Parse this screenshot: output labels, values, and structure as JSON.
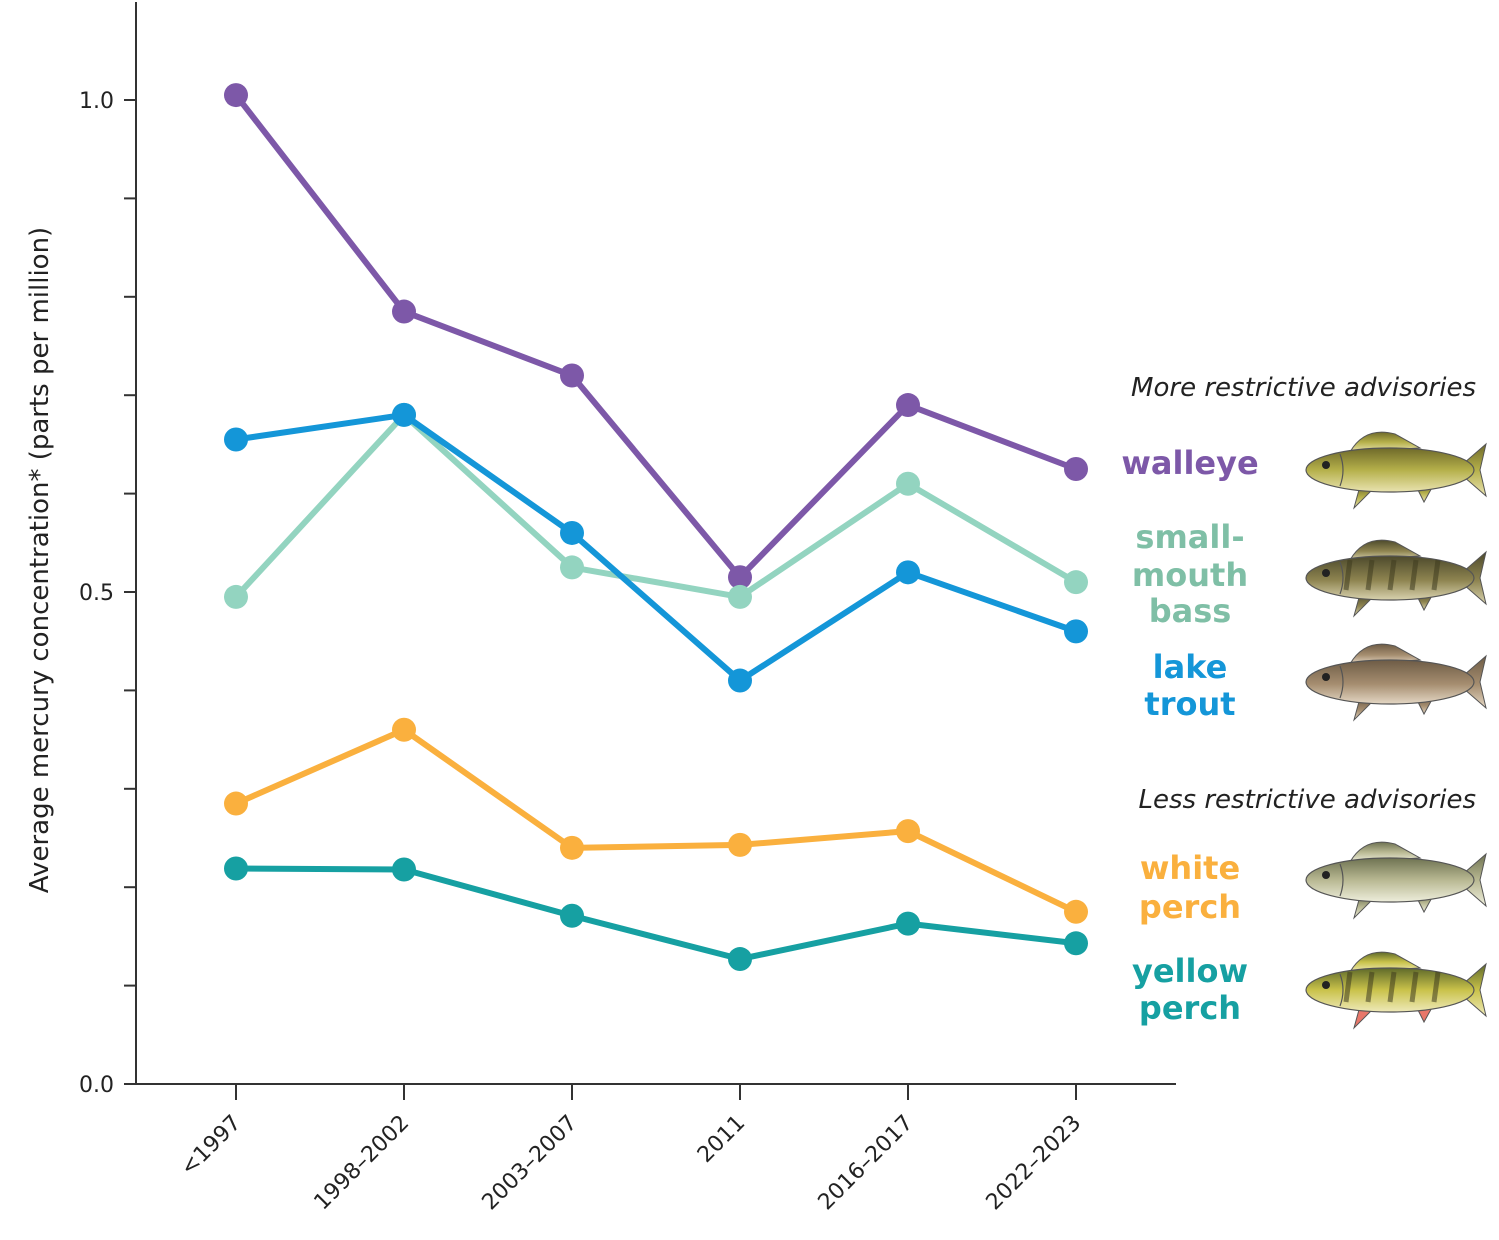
{
  "chart_data": {
    "type": "line",
    "ylabel": "Average mercury concentration* (parts per million)",
    "xlabel": "",
    "ylim": [
      0.0,
      1.0
    ],
    "yticks": [
      {
        "value": 0.0,
        "label": "0.0"
      },
      {
        "value": 0.5,
        "label": "0.5"
      },
      {
        "value": 1.0,
        "label": "1.0"
      }
    ],
    "categories": [
      "<1997",
      "1998–2002",
      "2003–2007",
      "2011",
      "2016–2017",
      "2022–2023"
    ],
    "series": [
      {
        "name": "walleye",
        "color": "#7d58a8",
        "values": [
          1.005,
          0.785,
          0.72,
          0.515,
          0.69,
          0.625
        ]
      },
      {
        "name": "small-mouth bass",
        "color": "#93d4c0",
        "values": [
          0.495,
          0.68,
          0.525,
          0.495,
          0.61,
          0.51
        ]
      },
      {
        "name": "lake trout",
        "color": "#1496d8",
        "values": [
          0.655,
          0.68,
          0.56,
          0.41,
          0.52,
          0.46
        ]
      },
      {
        "name": "white perch",
        "color": "#fab03e",
        "values": [
          0.285,
          0.36,
          0.24,
          0.243,
          0.257,
          0.175
        ]
      },
      {
        "name": "yellow perch",
        "color": "#16a0a2",
        "values": [
          0.219,
          0.218,
          0.171,
          0.127,
          0.163,
          0.143
        ]
      }
    ],
    "legend": {
      "placement": "right",
      "groups": [
        {
          "title": "More restrictive advisories",
          "items": [
            {
              "lines": [
                "walleye"
              ],
              "color": "#7d58a8",
              "icon": "walleye-fish-icon"
            },
            {
              "lines": [
                "small-",
                "mouth",
                "bass"
              ],
              "color": "#7fbfa6",
              "icon": "smallmouth-bass-fish-icon"
            },
            {
              "lines": [
                "lake",
                "trout"
              ],
              "color": "#1496d8",
              "icon": "lake-trout-fish-icon"
            }
          ]
        },
        {
          "title": "Less restrictive advisories",
          "items": [
            {
              "lines": [
                "white",
                "perch"
              ],
              "color": "#fab03e",
              "icon": "white-perch-fish-icon"
            },
            {
              "lines": [
                "yellow",
                "perch"
              ],
              "color": "#16a0a2",
              "icon": "yellow-perch-fish-icon"
            }
          ]
        }
      ]
    },
    "grid": false
  }
}
